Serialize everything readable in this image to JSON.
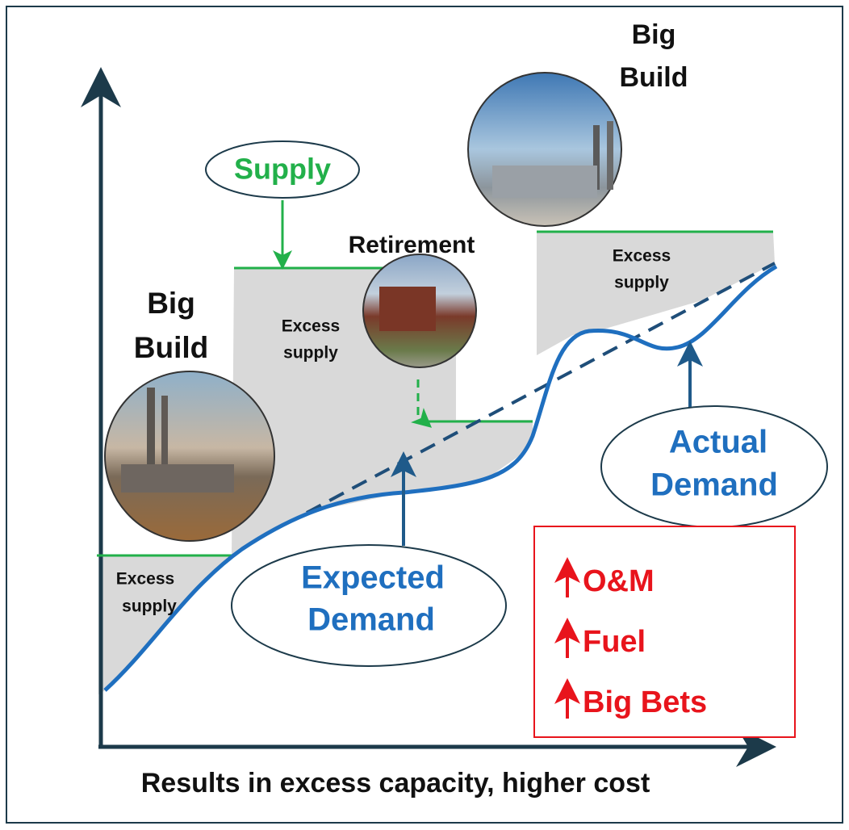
{
  "top_build": [
    "Big",
    "Build"
  ],
  "supply": "Supply",
  "retirement": "Retirement",
  "left_build": [
    "Big",
    "Build"
  ],
  "excess_left": [
    "Excess",
    "supply"
  ],
  "excess_middle": [
    "Excess",
    "supply"
  ],
  "excess_right": [
    "Excess",
    "supply"
  ],
  "expected_demand": [
    "Expected",
    "Demand"
  ],
  "actual_demand": [
    "Actual",
    "Demand"
  ],
  "cost_drivers": [
    "O&M",
    "Fuel",
    "Big Bets"
  ],
  "caption": "Results in excess capacity, higher cost"
}
